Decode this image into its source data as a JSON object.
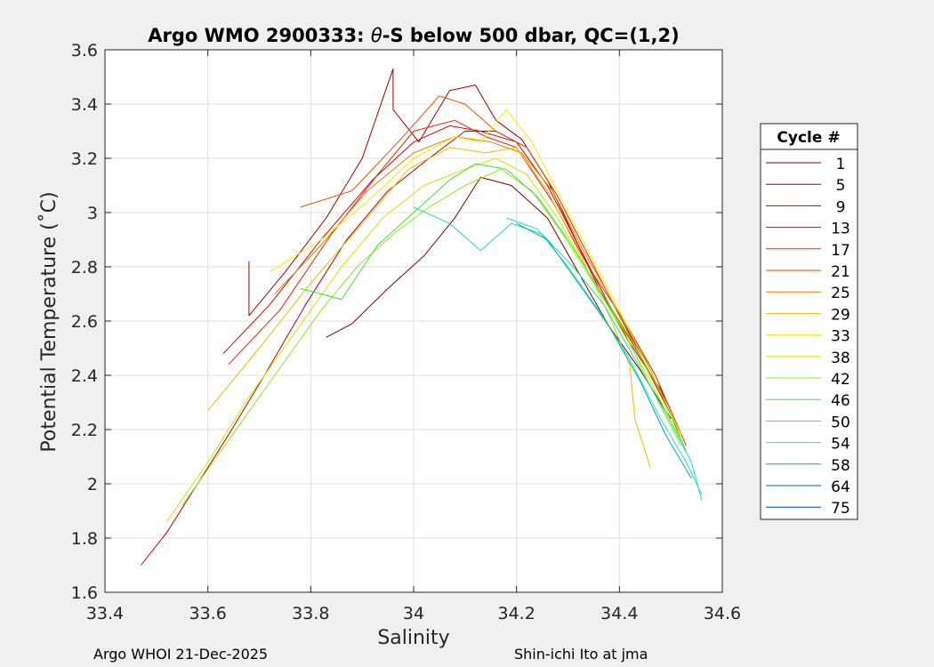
{
  "chart_data": {
    "type": "line",
    "title": "Argo WMO 2900333: θ-S below 500 dbar,  QC=(1,2)",
    "title_parts": {
      "prefix": "Argo WMO 2900333: ",
      "theta": "θ",
      "suffix": "-S below 500 dbar,  QC=(1,2)"
    },
    "xlabel": "Salinity",
    "ylabel": "Potential Temperature (˚C)",
    "xlim": [
      33.4,
      34.6
    ],
    "ylim": [
      1.6,
      3.6
    ],
    "xticks": [
      33.4,
      33.6,
      33.8,
      34,
      34.2,
      34.4,
      34.6
    ],
    "xtick_labels": [
      "33.4",
      "33.6",
      "33.8",
      "34",
      "34.2",
      "34.4",
      "34.6"
    ],
    "yticks": [
      1.6,
      1.8,
      2,
      2.2,
      2.4,
      2.6,
      2.8,
      3,
      3.2,
      3.4,
      3.6
    ],
    "ytick_labels": [
      "1.6",
      "1.8",
      "2",
      "2.2",
      "2.4",
      "2.6",
      "2.8",
      "3",
      "3.2",
      "3.4",
      "3.6"
    ],
    "grid": true,
    "legend_title": "Cycle #",
    "legend_position": "outside-right",
    "series": [
      {
        "name": "1",
        "color": "#800000",
        "points": [
          [
            33.83,
            2.54
          ],
          [
            33.88,
            2.59
          ],
          [
            33.95,
            2.72
          ],
          [
            34.02,
            2.84
          ],
          [
            34.08,
            2.98
          ],
          [
            34.13,
            3.13
          ],
          [
            34.19,
            3.1
          ],
          [
            34.26,
            2.98
          ],
          [
            34.32,
            2.78
          ],
          [
            34.38,
            2.58
          ],
          [
            34.44,
            2.42
          ],
          [
            34.5,
            2.24
          ]
        ]
      },
      {
        "name": "5",
        "color": "#a00000",
        "points": [
          [
            33.68,
            2.82
          ],
          [
            33.68,
            2.62
          ],
          [
            33.75,
            2.78
          ],
          [
            33.83,
            2.98
          ],
          [
            33.9,
            3.2
          ],
          [
            33.96,
            3.53
          ],
          [
            33.96,
            3.38
          ],
          [
            34.01,
            3.26
          ],
          [
            34.07,
            3.45
          ],
          [
            34.12,
            3.47
          ],
          [
            34.16,
            3.34
          ],
          [
            34.21,
            3.27
          ],
          [
            34.26,
            3.12
          ],
          [
            34.3,
            2.96
          ],
          [
            34.36,
            2.72
          ],
          [
            34.42,
            2.52
          ],
          [
            34.48,
            2.35
          ],
          [
            34.52,
            2.16
          ]
        ]
      },
      {
        "name": "9",
        "color": "#c00000",
        "points": [
          [
            33.47,
            1.7
          ],
          [
            33.52,
            1.82
          ],
          [
            33.58,
            2.0
          ],
          [
            33.64,
            2.18
          ],
          [
            33.71,
            2.4
          ],
          [
            33.79,
            2.66
          ],
          [
            33.87,
            2.9
          ],
          [
            33.95,
            3.08
          ],
          [
            34.03,
            3.2
          ],
          [
            34.1,
            3.3
          ],
          [
            34.16,
            3.3
          ],
          [
            34.22,
            3.24
          ],
          [
            34.28,
            3.06
          ],
          [
            34.34,
            2.84
          ],
          [
            34.4,
            2.62
          ],
          [
            34.46,
            2.42
          ],
          [
            34.52,
            2.18
          ]
        ]
      },
      {
        "name": "13",
        "color": "#dd0000",
        "points": [
          [
            33.63,
            2.48
          ],
          [
            33.72,
            2.66
          ],
          [
            33.82,
            2.9
          ],
          [
            33.92,
            3.12
          ],
          [
            34.0,
            3.26
          ],
          [
            34.07,
            3.32
          ],
          [
            34.13,
            3.3
          ],
          [
            34.2,
            3.26
          ],
          [
            34.26,
            3.1
          ],
          [
            34.32,
            2.88
          ],
          [
            34.38,
            2.66
          ],
          [
            34.45,
            2.44
          ],
          [
            34.51,
            2.22
          ]
        ]
      },
      {
        "name": "17",
        "color": "#ee2200",
        "points": [
          [
            33.64,
            2.44
          ],
          [
            33.74,
            2.64
          ],
          [
            33.84,
            2.92
          ],
          [
            33.93,
            3.14
          ],
          [
            34.0,
            3.3
          ],
          [
            34.08,
            3.34
          ],
          [
            34.14,
            3.28
          ],
          [
            34.2,
            3.24
          ],
          [
            34.27,
            3.04
          ],
          [
            34.34,
            2.8
          ],
          [
            34.41,
            2.6
          ],
          [
            34.47,
            2.4
          ],
          [
            34.53,
            2.14
          ]
        ]
      },
      {
        "name": "21",
        "color": "#e05500",
        "points": [
          [
            33.78,
            3.02
          ],
          [
            33.88,
            3.08
          ],
          [
            33.97,
            3.26
          ],
          [
            34.05,
            3.43
          ],
          [
            34.1,
            3.4
          ],
          [
            34.16,
            3.3
          ],
          [
            34.22,
            3.24
          ],
          [
            34.28,
            3.06
          ],
          [
            34.34,
            2.84
          ],
          [
            34.4,
            2.62
          ],
          [
            34.46,
            2.4
          ],
          [
            34.52,
            2.18
          ]
        ]
      },
      {
        "name": "25",
        "color": "#e08000",
        "points": [
          [
            33.73,
            2.7
          ],
          [
            33.82,
            2.88
          ],
          [
            33.91,
            3.08
          ],
          [
            34.0,
            3.22
          ],
          [
            34.08,
            3.28
          ],
          [
            34.15,
            3.26
          ],
          [
            34.21,
            3.22
          ],
          [
            34.27,
            3.08
          ],
          [
            34.33,
            2.86
          ],
          [
            34.39,
            2.66
          ],
          [
            34.45,
            2.46
          ],
          [
            34.51,
            2.22
          ]
        ]
      },
      {
        "name": "29",
        "color": "#e8c000",
        "points": [
          [
            33.6,
            2.27
          ],
          [
            33.7,
            2.5
          ],
          [
            33.8,
            2.74
          ],
          [
            33.9,
            2.96
          ],
          [
            33.99,
            3.16
          ],
          [
            34.07,
            3.24
          ],
          [
            34.14,
            3.22
          ],
          [
            34.2,
            3.24
          ],
          [
            34.26,
            3.08
          ],
          [
            34.32,
            2.86
          ],
          [
            34.38,
            2.62
          ],
          [
            34.42,
            2.44
          ],
          [
            34.43,
            2.24
          ],
          [
            34.46,
            2.06
          ]
        ]
      },
      {
        "name": "33",
        "color": "#f0f000",
        "points": [
          [
            33.72,
            2.78
          ],
          [
            33.82,
            2.9
          ],
          [
            33.91,
            3.04
          ],
          [
            34.0,
            3.2
          ],
          [
            34.08,
            3.28
          ],
          [
            34.13,
            3.26
          ],
          [
            34.18,
            3.38
          ],
          [
            34.23,
            3.26
          ],
          [
            34.29,
            3.04
          ],
          [
            34.35,
            2.82
          ],
          [
            34.41,
            2.6
          ],
          [
            34.47,
            2.38
          ],
          [
            34.52,
            2.18
          ]
        ]
      },
      {
        "name": "38",
        "color": "#c0f000",
        "points": [
          [
            33.52,
            1.86
          ],
          [
            33.6,
            2.08
          ],
          [
            33.68,
            2.32
          ],
          [
            33.77,
            2.56
          ],
          [
            33.86,
            2.8
          ],
          [
            33.94,
            2.98
          ],
          [
            34.02,
            3.1
          ],
          [
            34.1,
            3.16
          ],
          [
            34.16,
            3.2
          ],
          [
            34.22,
            3.14
          ],
          [
            34.28,
            2.98
          ],
          [
            34.34,
            2.78
          ],
          [
            34.4,
            2.58
          ],
          [
            34.46,
            2.38
          ],
          [
            34.52,
            2.16
          ]
        ]
      },
      {
        "name": "42",
        "color": "#90e820",
        "points": [
          [
            33.55,
            1.92
          ],
          [
            33.64,
            2.16
          ],
          [
            33.73,
            2.4
          ],
          [
            33.82,
            2.64
          ],
          [
            33.89,
            2.8
          ],
          [
            33.96,
            2.92
          ],
          [
            34.03,
            3.02
          ],
          [
            34.1,
            3.1
          ],
          [
            34.17,
            3.16
          ],
          [
            34.23,
            3.08
          ],
          [
            34.29,
            2.92
          ],
          [
            34.35,
            2.74
          ],
          [
            34.41,
            2.56
          ],
          [
            34.46,
            2.36
          ],
          [
            34.52,
            2.14
          ]
        ]
      },
      {
        "name": "46",
        "color": "#40e040",
        "points": [
          [
            33.78,
            2.72
          ],
          [
            33.86,
            2.68
          ],
          [
            33.93,
            2.88
          ],
          [
            34.0,
            3.0
          ],
          [
            34.07,
            3.12
          ],
          [
            34.12,
            3.18
          ],
          [
            34.18,
            3.16
          ],
          [
            34.24,
            3.06
          ],
          [
            34.3,
            2.9
          ],
          [
            34.36,
            2.72
          ],
          [
            34.42,
            2.54
          ],
          [
            34.48,
            2.34
          ],
          [
            34.53,
            2.12
          ]
        ]
      },
      {
        "name": "50",
        "color": "#20e0a0",
        "points": [
          [
            34.0,
            3.02
          ],
          [
            34.07,
            2.96
          ],
          [
            34.13,
            2.86
          ],
          [
            34.19,
            2.96
          ],
          [
            34.25,
            2.92
          ],
          [
            34.31,
            2.8
          ],
          [
            34.37,
            2.66
          ],
          [
            34.43,
            2.46
          ],
          [
            34.49,
            2.26
          ],
          [
            34.54,
            2.08
          ],
          [
            34.56,
            1.94
          ]
        ]
      },
      {
        "name": "54",
        "color": "#20e0e0",
        "points": [
          [
            34.18,
            2.98
          ],
          [
            34.24,
            2.94
          ],
          [
            34.3,
            2.8
          ],
          [
            34.36,
            2.64
          ],
          [
            34.42,
            2.46
          ],
          [
            34.48,
            2.24
          ],
          [
            34.53,
            2.08
          ],
          [
            34.56,
            1.96
          ]
        ]
      },
      {
        "name": "58",
        "color": "#00b090",
        "points": [
          [
            34.2,
            2.96
          ],
          [
            34.26,
            2.9
          ],
          [
            34.32,
            2.74
          ],
          [
            34.38,
            2.58
          ],
          [
            34.44,
            2.38
          ],
          [
            34.49,
            2.18
          ],
          [
            34.54,
            2.02
          ]
        ]
      },
      {
        "name": "64",
        "color": "#0060b0",
        "points": []
      },
      {
        "name": "75",
        "color": "#0040c0",
        "points": []
      }
    ]
  },
  "footer": {
    "left": "Argo WHOI 21-Dec-2025",
    "right": "Shin-ichi Ito at jma"
  }
}
